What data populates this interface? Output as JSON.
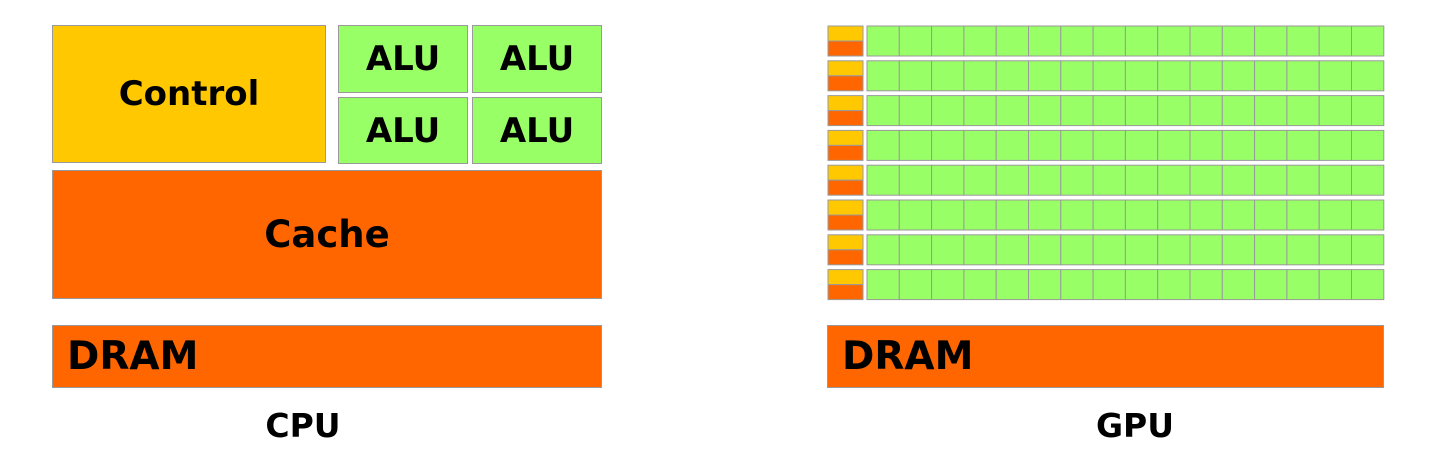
{
  "cpu": {
    "control_label": "Control",
    "alu_labels": [
      "ALU",
      "ALU",
      "ALU",
      "ALU"
    ],
    "cache_label": "Cache",
    "dram_label": "DRAM",
    "caption": "CPU"
  },
  "gpu": {
    "dram_label": "DRAM",
    "caption": "GPU",
    "core_rows": 8,
    "alus_per_row": 16
  },
  "colors": {
    "control": "#ffc800",
    "alu": "#99ff66",
    "cache": "#ff6600",
    "dram": "#ff6600",
    "border": "#9a9a9a"
  }
}
